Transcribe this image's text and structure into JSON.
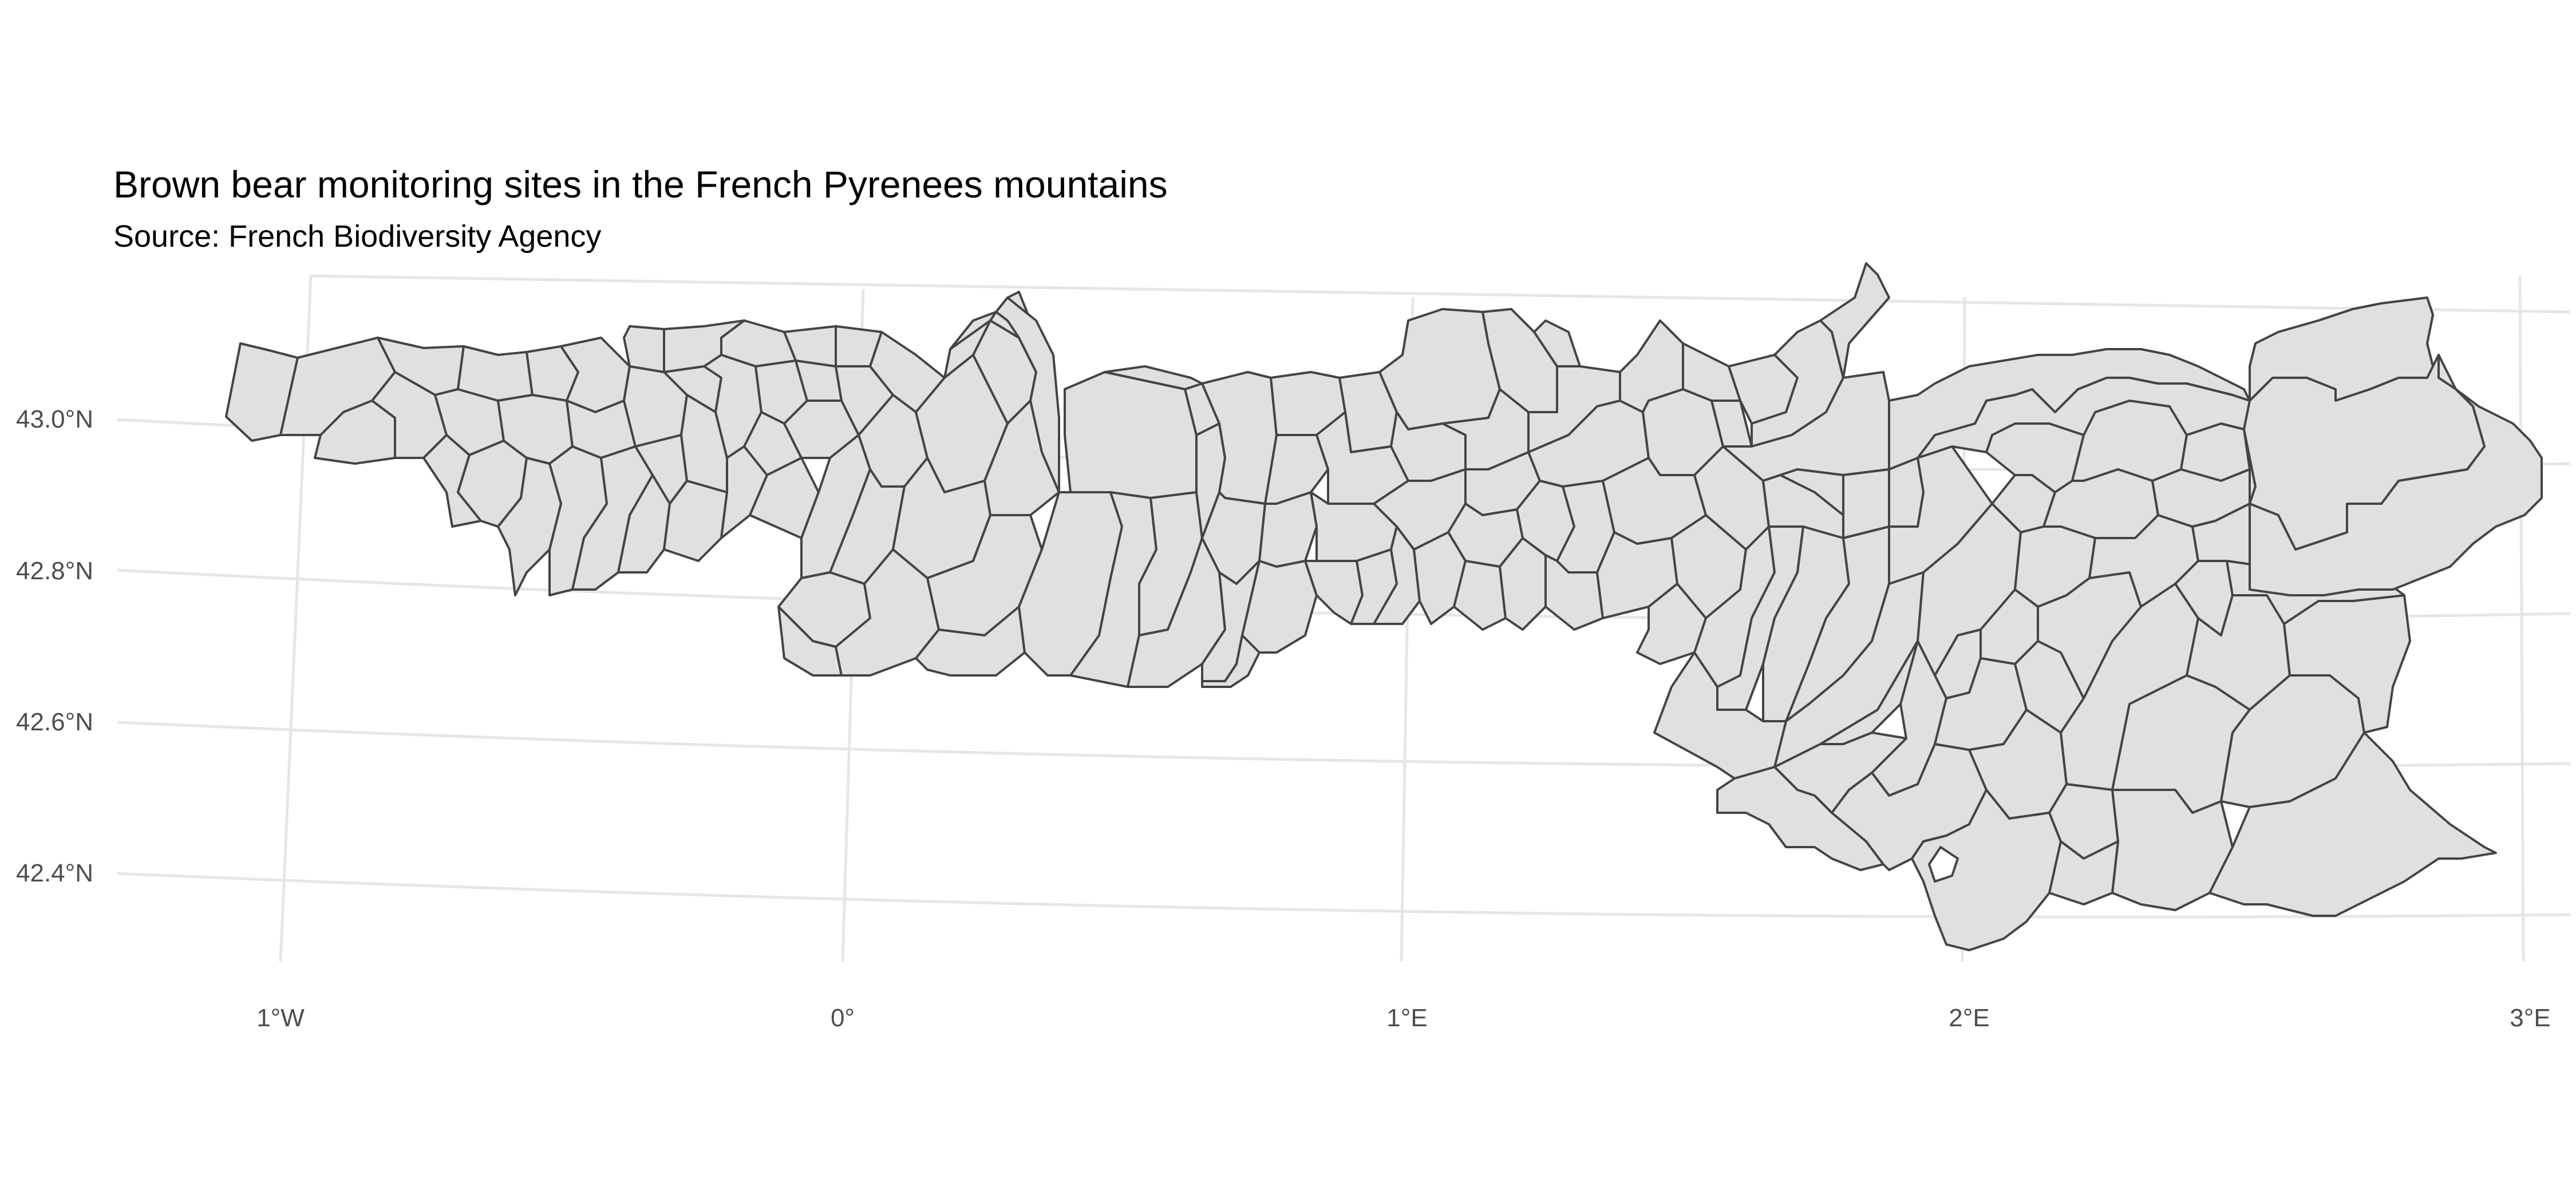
{
  "title": "Brown bear monitoring sites in the French Pyrenees mountains",
  "subtitle": "Source: French Biodiversity Agency",
  "axes": {
    "x_ticks": [
      "1°W",
      "0°",
      "1°E",
      "2°E",
      "3°E"
    ],
    "y_ticks": [
      "43.0°N",
      "42.8°N",
      "42.6°N",
      "42.4°N"
    ]
  },
  "colors": {
    "region_fill": "#e0e0e0",
    "region_stroke": "#444444",
    "graticule": "#e6e6e6",
    "tick_text": "#4d4d4d"
  },
  "chart_data": {
    "type": "map",
    "projection": "conic (tilted graticule)",
    "xlim": [
      -1.0,
      3.0
    ],
    "ylim": [
      42.3,
      43.15
    ],
    "grid": true,
    "region_count": 150
  }
}
